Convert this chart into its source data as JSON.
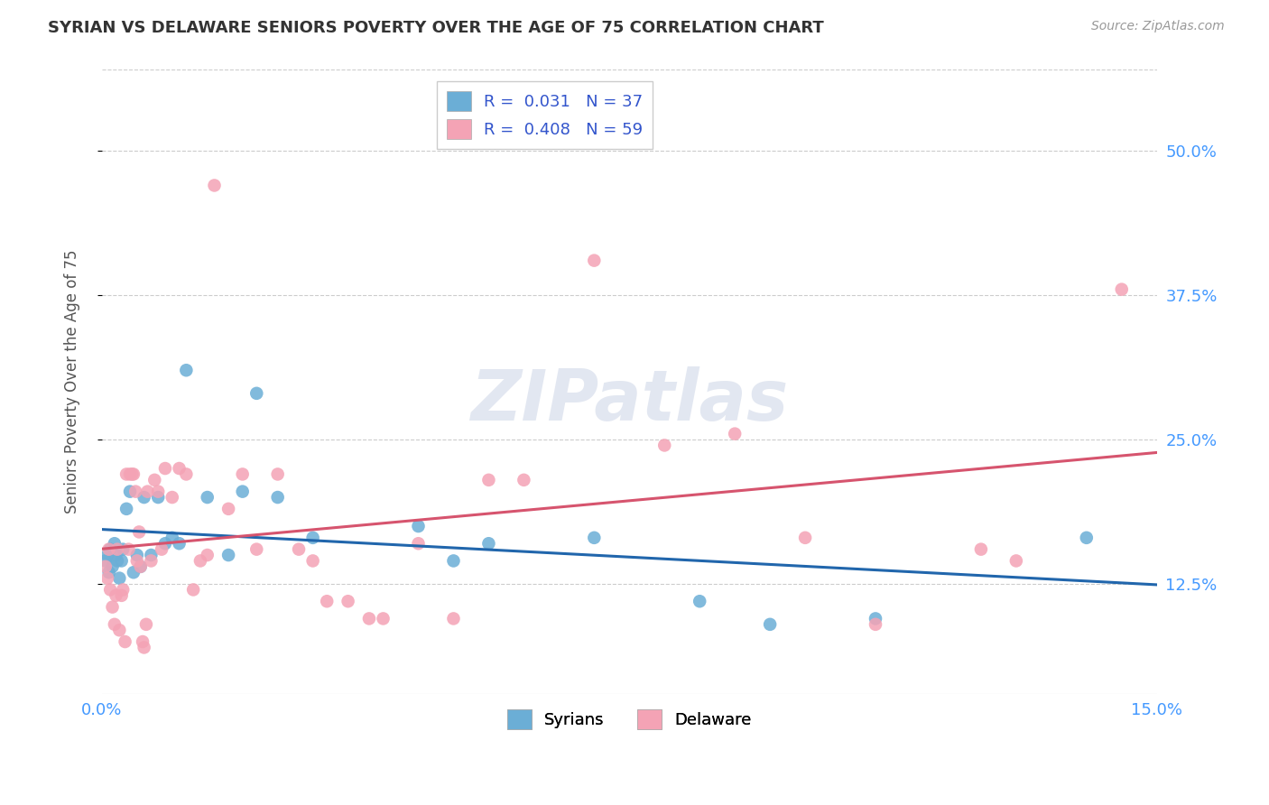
{
  "title": "SYRIAN VS DELAWARE SENIORS POVERTY OVER THE AGE OF 75 CORRELATION CHART",
  "source": "Source: ZipAtlas.com",
  "ylabel_label": "Seniors Poverty Over the Age of 75",
  "ylabel_ticks": [
    "12.5%",
    "25.0%",
    "37.5%",
    "50.0%"
  ],
  "xlim": [
    0.0,
    15.0
  ],
  "ylim": [
    3.0,
    57.0
  ],
  "ytick_vals": [
    12.5,
    25.0,
    37.5,
    50.0
  ],
  "syrians_color": "#6baed6",
  "delaware_color": "#f4a3b5",
  "syrians_line_color": "#2166ac",
  "delaware_line_color": "#d6546e",
  "syrians_R": 0.031,
  "syrians_N": 37,
  "delaware_R": 0.408,
  "delaware_N": 59,
  "syrians_x": [
    0.05,
    0.08,
    0.1,
    0.12,
    0.15,
    0.18,
    0.2,
    0.22,
    0.25,
    0.28,
    0.3,
    0.35,
    0.4,
    0.45,
    0.5,
    0.55,
    0.6,
    0.7,
    0.8,
    0.9,
    1.0,
    1.1,
    1.2,
    1.5,
    1.8,
    2.0,
    2.2,
    2.5,
    3.0,
    4.5,
    5.0,
    5.5,
    7.0,
    8.5,
    9.5,
    11.0,
    14.0
  ],
  "syrians_y": [
    14.5,
    15.0,
    13.5,
    15.5,
    14.0,
    16.0,
    15.0,
    14.5,
    13.0,
    14.5,
    15.5,
    19.0,
    20.5,
    13.5,
    15.0,
    14.0,
    20.0,
    15.0,
    20.0,
    16.0,
    16.5,
    16.0,
    31.0,
    20.0,
    15.0,
    20.5,
    29.0,
    20.0,
    16.5,
    17.5,
    14.5,
    16.0,
    16.5,
    11.0,
    9.0,
    9.5,
    16.5
  ],
  "delaware_x": [
    0.05,
    0.08,
    0.1,
    0.12,
    0.15,
    0.18,
    0.2,
    0.22,
    0.25,
    0.28,
    0.3,
    0.33,
    0.35,
    0.38,
    0.4,
    0.43,
    0.45,
    0.48,
    0.5,
    0.53,
    0.55,
    0.58,
    0.6,
    0.63,
    0.65,
    0.7,
    0.75,
    0.8,
    0.85,
    0.9,
    1.0,
    1.1,
    1.2,
    1.3,
    1.4,
    1.5,
    1.6,
    1.8,
    2.0,
    2.2,
    2.5,
    2.8,
    3.0,
    3.2,
    3.5,
    3.8,
    4.0,
    4.5,
    5.0,
    5.5,
    6.0,
    7.0,
    8.0,
    9.0,
    10.0,
    11.0,
    12.5,
    13.0,
    14.5
  ],
  "delaware_y": [
    14.0,
    13.0,
    15.5,
    12.0,
    10.5,
    9.0,
    11.5,
    15.5,
    8.5,
    11.5,
    12.0,
    7.5,
    22.0,
    15.5,
    22.0,
    22.0,
    22.0,
    20.5,
    14.5,
    17.0,
    14.0,
    7.5,
    7.0,
    9.0,
    20.5,
    14.5,
    21.5,
    20.5,
    15.5,
    22.5,
    20.0,
    22.5,
    22.0,
    12.0,
    14.5,
    15.0,
    47.0,
    19.0,
    22.0,
    15.5,
    22.0,
    15.5,
    14.5,
    11.0,
    11.0,
    9.5,
    9.5,
    16.0,
    9.5,
    21.5,
    21.5,
    40.5,
    24.5,
    25.5,
    16.5,
    9.0,
    15.5,
    14.5,
    38.0
  ],
  "watermark_text": "ZIPatlas",
  "background_color": "#ffffff",
  "grid_color": "#cccccc"
}
